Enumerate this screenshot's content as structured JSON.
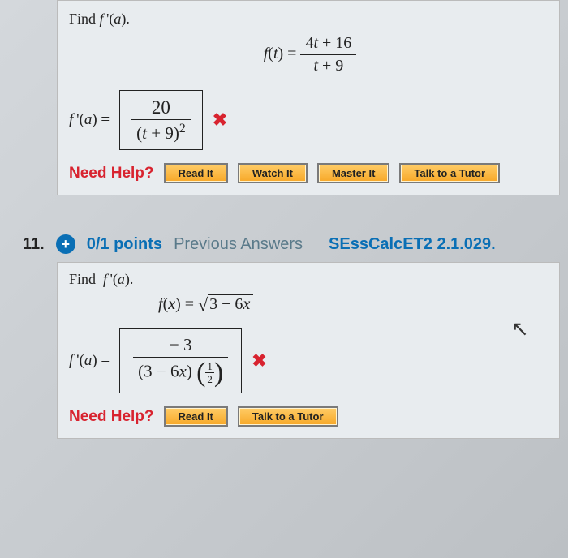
{
  "problem10": {
    "prompt_html": "Find <span class='it'>f</span>&thinsp;'(<span class='it'>a</span>).",
    "func_lhs_html": "<span class='it'>f</span>(<span class='it'>t</span>) = ",
    "func_num_html": "4<span class='it'>t</span> + 16",
    "func_den_html": "<span class='it'>t</span> + 9",
    "answer_lhs_html": "<span class='it'>f</span>&thinsp;'(<span class='it'>a</span>) = ",
    "answer_num": "20",
    "answer_den_html": "(<span class='it'>t</span> + 9)<span class='sup'>2</span>",
    "mark": "✖",
    "help_label": "Need Help?",
    "buttons": [
      "Read It",
      "Watch It",
      "Master It",
      "Talk to a Tutor"
    ]
  },
  "header11": {
    "num": "11.",
    "plus": "+",
    "points": "0/1 points",
    "prev": "Previous Answers",
    "source": "SEssCalcET2 2.1.029."
  },
  "problem11": {
    "prompt_html": "Find&nbsp; <span class='it'>f</span>&thinsp;'(<span class='it'>a</span>).",
    "func_lhs_html": "<span class='it'>f</span>(<span class='it'>x</span>) = ",
    "under_sqrt_html": "3 − 6<span class='it'>x</span>",
    "answer_lhs_html": "<span class='it'>f</span>&thinsp;'(<span class='it'>a</span>) = ",
    "answer_num_html": "−&nbsp;<span style='display:inline-block;text-align:center'><span style='display:block;border-bottom:1.5px solid #222;padding:0 24px 1px'>3</span><span style='display:block;padding-top:2px;font-size:0'></span></span>",
    "answer_num_top": "3",
    "answer_den_base_html": "(3 − 6<span class='it'>x</span>)",
    "exp_num": "1",
    "exp_den": "2",
    "mark": "✖",
    "help_label": "Need Help?",
    "buttons": [
      "Read It",
      "Talk to a Tutor"
    ]
  },
  "colors": {
    "accent_red": "#d8232f",
    "accent_blue": "#0a6fb5",
    "button_bg_top": "#ffcc66",
    "button_bg_bottom": "#f7a828",
    "panel_bg": "#e8ecef"
  }
}
